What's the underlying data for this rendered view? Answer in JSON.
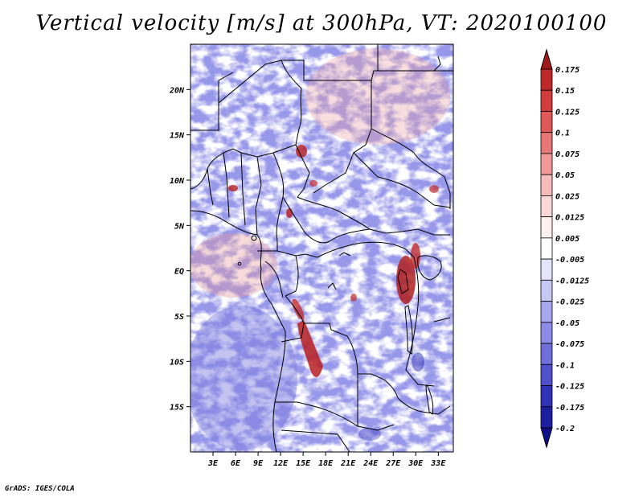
{
  "title": "Vertical velocity [m/s] at 300hPa, VT: 2020100100",
  "credit": "GrADS: IGES/COLA",
  "map": {
    "lon_range": [
      0,
      35
    ],
    "lat_range": [
      -20,
      25
    ],
    "lat_ticks": [
      {
        "lat": 20,
        "label": "20N"
      },
      {
        "lat": 15,
        "label": "15N"
      },
      {
        "lat": 10,
        "label": "10N"
      },
      {
        "lat": 5,
        "label": "5N"
      },
      {
        "lat": 0,
        "label": "EQ"
      },
      {
        "lat": -5,
        "label": "5S"
      },
      {
        "lat": -10,
        "label": "10S"
      },
      {
        "lat": -15,
        "label": "15S"
      }
    ],
    "lon_ticks": [
      {
        "lon": 3,
        "label": "3E"
      },
      {
        "lon": 6,
        "label": "6E"
      },
      {
        "lon": 9,
        "label": "9E"
      },
      {
        "lon": 12,
        "label": "12E"
      },
      {
        "lon": 15,
        "label": "15E"
      },
      {
        "lon": 18,
        "label": "18E"
      },
      {
        "lon": 21,
        "label": "21E"
      },
      {
        "lon": 24,
        "label": "24E"
      },
      {
        "lon": 27,
        "label": "27E"
      },
      {
        "lon": 30,
        "label": "30E"
      },
      {
        "lon": 33,
        "label": "33E"
      }
    ]
  },
  "colorbar": {
    "labels": [
      "0.175",
      "0.15",
      "0.125",
      "0.1",
      "0.075",
      "0.05",
      "0.025",
      "0.0125",
      "0.005",
      "-0.005",
      "-0.0125",
      "-0.025",
      "-0.05",
      "-0.075",
      "-0.1",
      "-0.125",
      "-0.175",
      "-0.2"
    ],
    "colors": [
      "#a01818",
      "#be2828",
      "#d23c3c",
      "#e05858",
      "#e87878",
      "#f09a9a",
      "#f6bcbc",
      "#fad8d8",
      "#fdf0f0",
      "#ffffff",
      "#e4e4fa",
      "#c8c8f4",
      "#a8a8ee",
      "#8c8ce8",
      "#6e6edc",
      "#5050cc",
      "#3232b8",
      "#1e1ea0",
      "#10108c"
    ]
  }
}
